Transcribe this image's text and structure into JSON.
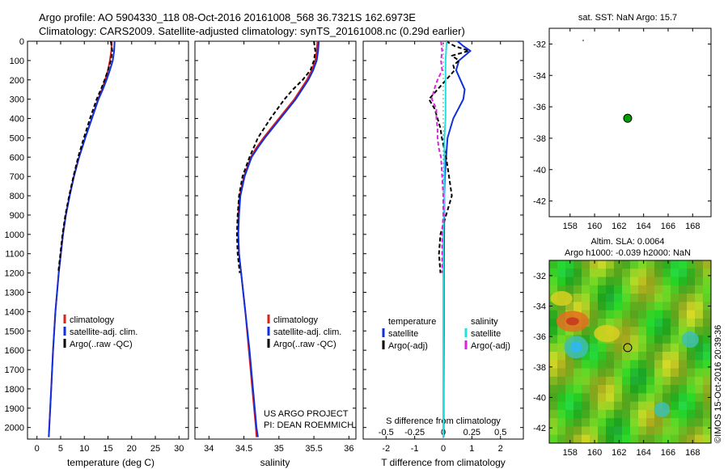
{
  "header": {
    "line1": "Argo profile: AO 5904330_118 08-Oct-2016 20161008_568 36.7321S 162.6973E",
    "line2": "Climatology: CARS2009. Satellite-adjusted climatology: synTS_20161008.nc (0.29d earlier)"
  },
  "colors": {
    "climatology": "#e0201a",
    "satellite": "#1030e0",
    "argo": "#000000",
    "salinity_sat": "#20e0e0",
    "salinity_argo": "#e020e0",
    "green": "#00a000"
  },
  "depth_axis": {
    "ticks": [
      "0",
      "100",
      "200",
      "300",
      "400",
      "500",
      "600",
      "700",
      "800",
      "900",
      "1000",
      "1100",
      "1200",
      "1300",
      "1400",
      "1500",
      "1600",
      "1700",
      "1800",
      "1900",
      "2000"
    ],
    "ylim": [
      0,
      2060
    ]
  },
  "chart_data": [
    {
      "id": "temperature",
      "type": "line",
      "xlabel": "temperature (deg C)",
      "xlim": [
        -2,
        32
      ],
      "xticks": [
        "0",
        "5",
        "10",
        "15",
        "20",
        "25",
        "30"
      ],
      "xtick_values": [
        0,
        5,
        10,
        15,
        20,
        25,
        30
      ],
      "legend": [
        "climatology",
        "satellite-adj. clim.",
        "Argo(..raw -QC)"
      ],
      "series": [
        {
          "name": "climatology",
          "depth": [
            0,
            50,
            100,
            150,
            200,
            250,
            300,
            400,
            500,
            600,
            700,
            800,
            900,
            1000,
            1200,
            1400,
            1600,
            1800,
            2000,
            2050
          ],
          "values": [
            15.8,
            15.7,
            15.4,
            15.0,
            14.4,
            13.7,
            12.9,
            11.6,
            10.2,
            8.9,
            7.8,
            6.9,
            6.1,
            5.5,
            4.6,
            3.9,
            3.4,
            3.0,
            2.6,
            2.5
          ]
        },
        {
          "name": "satellite",
          "depth": [
            0,
            50,
            100,
            150,
            200,
            250,
            300,
            400,
            500,
            600,
            700,
            800,
            900,
            1000,
            1200,
            1400,
            1600,
            1800,
            2000,
            2050
          ],
          "values": [
            16.4,
            16.3,
            16.0,
            15.4,
            14.7,
            13.9,
            13.0,
            11.6,
            10.2,
            8.9,
            7.8,
            6.9,
            6.1,
            5.5,
            4.6,
            3.9,
            3.4,
            3.0,
            2.6,
            2.5
          ]
        },
        {
          "name": "argo",
          "depth": [
            0,
            50,
            100,
            150,
            200,
            250,
            300,
            400,
            500,
            600,
            700,
            800,
            900,
            1000,
            1200
          ],
          "values": [
            15.6,
            15.9,
            15.6,
            15.0,
            14.3,
            13.5,
            12.6,
            11.2,
            9.9,
            8.7,
            7.7,
            6.8,
            6.0,
            5.4,
            4.5
          ]
        }
      ]
    },
    {
      "id": "salinity",
      "type": "line",
      "xlabel": "salinity",
      "xlim": [
        33.8,
        36.1
      ],
      "xticks": [
        "34",
        "34.5",
        "35",
        "35.5",
        "36"
      ],
      "xtick_values": [
        34,
        34.5,
        35,
        35.5,
        36
      ],
      "legend": [
        "climatology",
        "satellite-adj. clim.",
        "Argo(..raw -QC)"
      ],
      "series": [
        {
          "name": "climatology",
          "depth": [
            0,
            50,
            100,
            150,
            200,
            300,
            400,
            500,
            550,
            600,
            700,
            800,
            900,
            1000,
            1100,
            1200,
            1400,
            1600,
            1800,
            2000,
            2050
          ],
          "values": [
            35.55,
            35.54,
            35.52,
            35.47,
            35.4,
            35.22,
            35.0,
            34.78,
            34.68,
            34.6,
            34.5,
            34.44,
            34.42,
            34.42,
            34.43,
            34.46,
            34.52,
            34.57,
            34.62,
            34.67,
            34.68
          ]
        },
        {
          "name": "satellite",
          "depth": [
            0,
            50,
            100,
            150,
            200,
            300,
            400,
            500,
            550,
            600,
            700,
            800,
            900,
            1000,
            1100,
            1200,
            1400,
            1600,
            1800,
            2000,
            2050
          ],
          "values": [
            35.57,
            35.56,
            35.54,
            35.49,
            35.42,
            35.24,
            35.02,
            34.8,
            34.7,
            34.61,
            34.51,
            34.45,
            34.43,
            34.42,
            34.43,
            34.46,
            34.52,
            34.58,
            34.63,
            34.68,
            34.7
          ]
        },
        {
          "name": "argo",
          "depth": [
            0,
            50,
            100,
            150,
            200,
            250,
            300,
            400,
            500,
            600,
            700,
            800,
            900,
            1000,
            1100,
            1200
          ],
          "values": [
            35.5,
            35.52,
            35.5,
            35.45,
            35.34,
            35.2,
            35.08,
            34.88,
            34.7,
            34.58,
            34.48,
            34.43,
            34.41,
            34.4,
            34.41,
            34.44
          ]
        }
      ],
      "annotations": [
        "US ARGO PROJECT",
        "PI: DEAN ROEMMICH"
      ]
    },
    {
      "id": "difference",
      "type": "line",
      "xlabel": "T difference from climatology",
      "top_label": "S difference from climatology",
      "xlim": [
        -2.8,
        2.8
      ],
      "xticks": [
        "-2",
        "-1",
        "0",
        "1",
        "2"
      ],
      "xtick_values": [
        -2,
        -1,
        0,
        1,
        2
      ],
      "s_ticks": [
        "-0.5",
        "-0.25",
        "0",
        "0.25",
        "0.5"
      ],
      "s_tick_values": [
        -0.5,
        -0.25,
        0,
        0.25,
        0.5
      ],
      "s_scale": 4,
      "legend_headers": [
        "temperature",
        "salinity"
      ],
      "legend": [
        "satellite",
        "Argo(-adj)",
        "satellite",
        "Argo(-adj)"
      ],
      "series": [
        {
          "name": "T satellite",
          "depth": [
            0,
            25,
            50,
            75,
            100,
            150,
            200,
            250,
            300,
            400,
            500,
            600,
            700,
            800,
            1000,
            1200,
            1500,
            1800,
            2050
          ],
          "values": [
            0.5,
            0.7,
            0.95,
            0.75,
            0.55,
            0.45,
            0.6,
            0.75,
            0.7,
            0.35,
            0.15,
            0.1,
            0.06,
            0.04,
            0.03,
            0.02,
            0.02,
            0.01,
            0.01
          ]
        },
        {
          "name": "T argo",
          "depth": [
            0,
            25,
            50,
            75,
            100,
            125,
            150,
            200,
            250,
            300,
            350,
            400,
            450,
            500,
            600,
            700,
            800,
            900,
            1000,
            1100,
            1200
          ],
          "values": [
            0.1,
            0.4,
            0.9,
            0.3,
            0.55,
            0.35,
            0.4,
            0.1,
            -0.2,
            -0.5,
            -0.3,
            -0.2,
            -0.1,
            -0.05,
            0.1,
            0.2,
            0.3,
            0.1,
            -0.1,
            -0.15,
            -0.1
          ]
        },
        {
          "name": "S satellite",
          "depth": [
            0,
            100,
            200,
            300,
            400,
            500,
            600,
            800,
            1000,
            1200,
            1500,
            2050
          ],
          "values": [
            0.03,
            0.02,
            0.02,
            0.02,
            0.02,
            0.01,
            0.01,
            0.01,
            0.0,
            0.0,
            0.0,
            0.0
          ]
        },
        {
          "name": "S argo",
          "depth": [
            0,
            50,
            100,
            150,
            200,
            250,
            300,
            350,
            400,
            450,
            500,
            550,
            600,
            700,
            800,
            900,
            1000,
            1100,
            1200
          ],
          "values": [
            -0.02,
            -0.01,
            -0.02,
            -0.01,
            -0.05,
            -0.08,
            -0.1,
            -0.06,
            -0.06,
            -0.05,
            -0.05,
            -0.04,
            -0.02,
            -0.01,
            0.0,
            0.0,
            -0.01,
            -0.01,
            -0.01
          ]
        }
      ]
    },
    {
      "id": "sst_map",
      "type": "scatter",
      "title": "sat. SST: NaN Argo: 15.7",
      "xlim": [
        156.3,
        169.5
      ],
      "ylim": [
        -43,
        -31
      ],
      "xticks": [
        "158",
        "160",
        "162",
        "164",
        "166",
        "168"
      ],
      "xtick_values": [
        158,
        160,
        162,
        164,
        166,
        168
      ],
      "yticks": [
        "-32",
        "-34",
        "-36",
        "-38",
        "-40",
        "-42"
      ],
      "ytick_values": [
        -32,
        -34,
        -36,
        -38,
        -40,
        -42
      ],
      "profile_point": {
        "lon": 162.7,
        "lat": -36.73
      }
    },
    {
      "id": "sla_map",
      "type": "heatmap",
      "title_line1": "Altim. SLA: 0.0064",
      "title_line2": "Argo h1000: -0.039 h2000: NaN",
      "xlim": [
        156.3,
        169.5
      ],
      "ylim": [
        -43,
        -31
      ],
      "xticks": [
        "158",
        "160",
        "162",
        "164",
        "166",
        "168"
      ],
      "xtick_values": [
        158,
        160,
        162,
        164,
        166,
        168
      ],
      "yticks": [
        "-32",
        "-34",
        "-36",
        "-38",
        "-40",
        "-42"
      ],
      "ytick_values": [
        -32,
        -34,
        -36,
        -38,
        -40,
        -42
      ],
      "profile_point": {
        "lon": 162.7,
        "lat": -36.73
      },
      "warm_anomalies": [
        {
          "lon": 158.2,
          "lat": -35.0,
          "strength": 1.0
        },
        {
          "lon": 161.0,
          "lat": -35.8,
          "strength": 0.6
        },
        {
          "lon": 157.3,
          "lat": -33.5,
          "strength": 0.35
        }
      ],
      "cold_anomalies": [
        {
          "lon": 158.5,
          "lat": -36.7,
          "strength": 1.0
        },
        {
          "lon": 167.8,
          "lat": -36.2,
          "strength": 0.45
        },
        {
          "lon": 165.5,
          "lat": -40.8,
          "strength": 0.35
        }
      ]
    }
  ],
  "footer": {
    "watermark": "©IMOS 15-Oct-2016 20:39:36"
  }
}
